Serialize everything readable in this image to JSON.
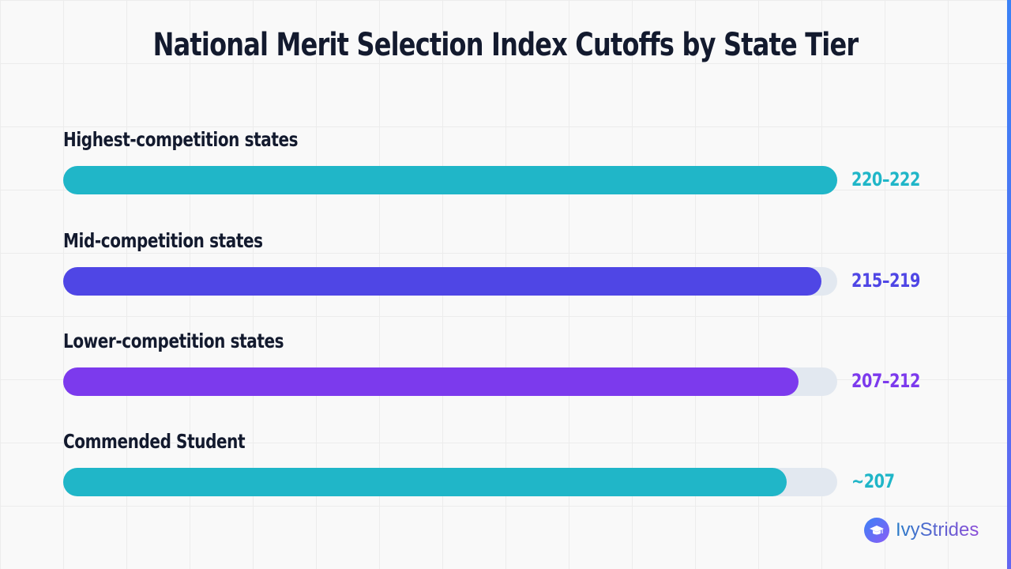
{
  "chart_data": {
    "type": "bar",
    "orientation": "horizontal",
    "title": "National Merit Selection Index Cutoffs by State Tier",
    "categories": [
      "Highest-competition states",
      "Mid-competition states",
      "Lower-competition states",
      "Commended Student"
    ],
    "value_labels": [
      "220–222",
      "215–219",
      "207–212",
      "~207"
    ],
    "values": [
      222,
      219,
      212,
      207
    ],
    "bar_fill_fraction": [
      1.0,
      0.98,
      0.95,
      0.935
    ],
    "colors": [
      "#20b6c8",
      "#4f46e5",
      "#7c3aed",
      "#20b6c8"
    ],
    "track_color": "#e2e8f0",
    "grid": true,
    "legend": "none"
  },
  "brand": {
    "name": "IvyStrides",
    "logo_icon": "graduation-cap-icon"
  }
}
